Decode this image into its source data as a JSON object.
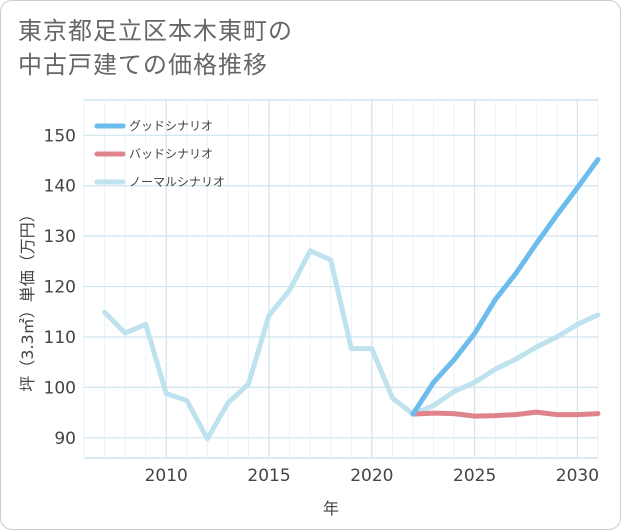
{
  "title_line1": "東京都足立区本木東町の",
  "title_line2": "中古戸建ての価格推移",
  "chart_data": {
    "type": "line",
    "title": "東京都足立区本木東町の中古戸建ての価格推移",
    "xlabel": "年",
    "ylabel": "坪（3.3㎡）単価（万円）",
    "xlim": [
      2006,
      2031
    ],
    "ylim": [
      86,
      157
    ],
    "xticks": [
      2010,
      2015,
      2020,
      2025,
      2030
    ],
    "yticks": [
      90,
      100,
      110,
      120,
      130,
      140,
      150
    ],
    "grid": true,
    "legend_position": "top-left",
    "series": [
      {
        "name": "グッドシナリオ",
        "color": "#6cbcec",
        "x": [
          2022,
          2023,
          2024,
          2025,
          2026,
          2027,
          2028,
          2029,
          2030,
          2031
        ],
        "y": [
          94.7,
          101,
          105.5,
          110.7,
          117.4,
          122.6,
          128.5,
          134.2,
          139.6,
          145.2
        ]
      },
      {
        "name": "バッドシナリオ",
        "color": "#e0848c",
        "x": [
          2022,
          2023,
          2024,
          2025,
          2026,
          2027,
          2028,
          2029,
          2030,
          2031
        ],
        "y": [
          94.7,
          94.9,
          94.8,
          94.3,
          94.4,
          94.6,
          95.1,
          94.6,
          94.6,
          94.8
        ]
      },
      {
        "name": "ノーマルシナリオ",
        "color": "#bfe2ef",
        "x": [
          2007,
          2008,
          2009,
          2010,
          2011,
          2012,
          2013,
          2014,
          2015,
          2016,
          2017,
          2018,
          2019,
          2020,
          2021,
          2022,
          2023,
          2024,
          2025,
          2026,
          2027,
          2028,
          2029,
          2030,
          2031
        ],
        "y": [
          114.9,
          110.8,
          112.5,
          98.8,
          97.4,
          89.8,
          96.9,
          100.7,
          114.3,
          119.3,
          127.1,
          125.3,
          107.7,
          107.7,
          97.9,
          94.7,
          96.4,
          99.2,
          101.0,
          103.6,
          105.6,
          108.0,
          110.0,
          112.5,
          114.4
        ]
      }
    ]
  }
}
